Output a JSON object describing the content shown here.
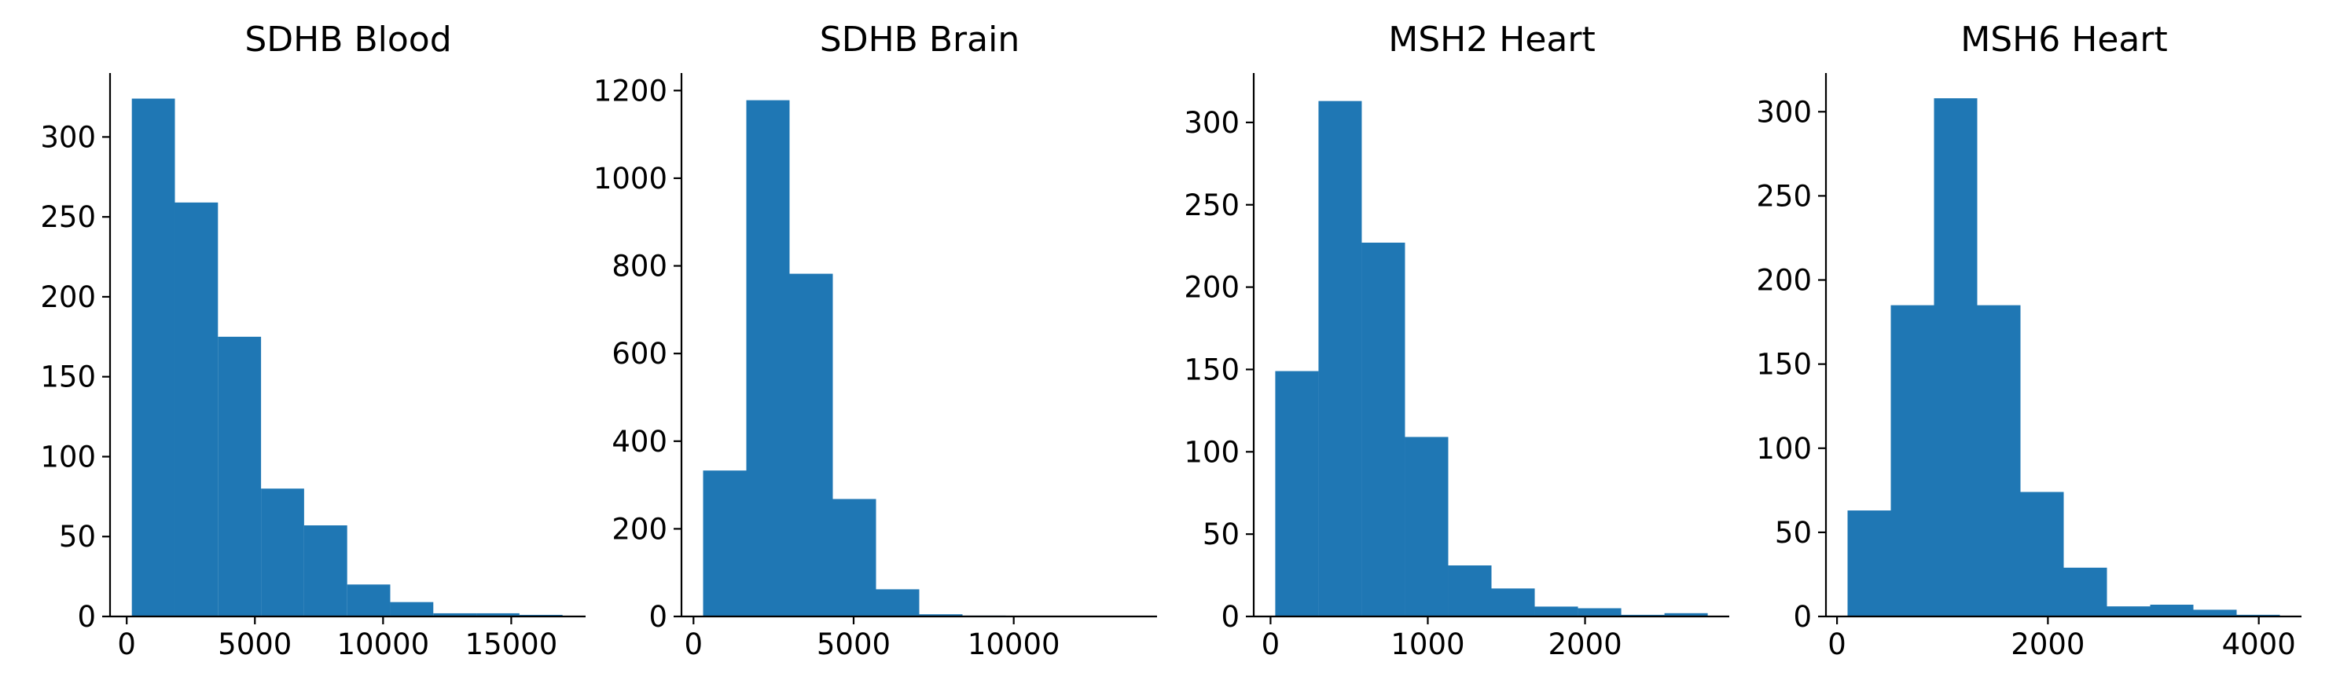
{
  "colors": {
    "bar": "#1f77b4",
    "axis": "#000000",
    "background": "#ffffff"
  },
  "chart_data": [
    {
      "type": "bar",
      "title": "SDHB Blood",
      "bin_edges": [
        200,
        1880,
        3560,
        5240,
        6920,
        8600,
        10280,
        11960,
        13640,
        15320,
        17000
      ],
      "values": [
        324,
        259,
        175,
        80,
        57,
        20,
        9,
        2,
        2,
        1
      ],
      "xlim": [
        -650,
        17900
      ],
      "ylim": [
        0,
        340
      ],
      "xticks": [
        0,
        5000,
        10000,
        15000
      ],
      "xtick_labels": [
        "0",
        "5000",
        "10000",
        "15000"
      ],
      "yticks": [
        0,
        50,
        100,
        150,
        200,
        250,
        300
      ],
      "ytick_labels": [
        "0",
        "50",
        "100",
        "150",
        "200",
        "250",
        "300"
      ],
      "xlabel": "",
      "ylabel": ""
    },
    {
      "type": "bar",
      "title": "SDHB Brain",
      "bin_edges": [
        300,
        1650,
        3000,
        4350,
        5700,
        7050,
        8400,
        9750,
        11100,
        12450,
        13800
      ],
      "values": [
        333,
        1178,
        782,
        268,
        62,
        5,
        2,
        0,
        0,
        1
      ],
      "xlim": [
        -375,
        14475
      ],
      "ylim": [
        0,
        1240
      ],
      "xticks": [
        0,
        5000,
        10000
      ],
      "xtick_labels": [
        "0",
        "5000",
        "10000"
      ],
      "yticks": [
        0,
        200,
        400,
        600,
        800,
        1000,
        1200
      ],
      "ytick_labels": [
        "0",
        "200",
        "400",
        "600",
        "800",
        "1000",
        "1200"
      ],
      "xlabel": "",
      "ylabel": ""
    },
    {
      "type": "bar",
      "title": "MSH2 Heart",
      "bin_edges": [
        30,
        305,
        580,
        855,
        1130,
        1405,
        1680,
        1955,
        2230,
        2505,
        2780
      ],
      "values": [
        149,
        313,
        227,
        109,
        31,
        17,
        6,
        5,
        1,
        2
      ],
      "xlim": [
        -107,
        2917
      ],
      "ylim": [
        0,
        330
      ],
      "xticks": [
        0,
        1000,
        2000
      ],
      "xtick_labels": [
        "0",
        "1000",
        "2000"
      ],
      "yticks": [
        0,
        50,
        100,
        150,
        200,
        250,
        300
      ],
      "ytick_labels": [
        "0",
        "50",
        "100",
        "150",
        "200",
        "250",
        "300"
      ],
      "xlabel": "",
      "ylabel": ""
    },
    {
      "type": "bar",
      "title": "MSH6 Heart",
      "bin_edges": [
        100,
        510,
        920,
        1330,
        1740,
        2150,
        2560,
        2970,
        3380,
        3790,
        4200
      ],
      "values": [
        63,
        185,
        308,
        185,
        74,
        29,
        6,
        7,
        4,
        1
      ],
      "xlim": [
        -105,
        4405
      ],
      "ylim": [
        0,
        323
      ],
      "xticks": [
        0,
        2000,
        4000
      ],
      "xtick_labels": [
        "0",
        "2000",
        "4000"
      ],
      "yticks": [
        0,
        50,
        100,
        150,
        200,
        250,
        300
      ],
      "ytick_labels": [
        "0",
        "50",
        "100",
        "150",
        "200",
        "250",
        "300"
      ],
      "xlabel": "",
      "ylabel": ""
    }
  ]
}
